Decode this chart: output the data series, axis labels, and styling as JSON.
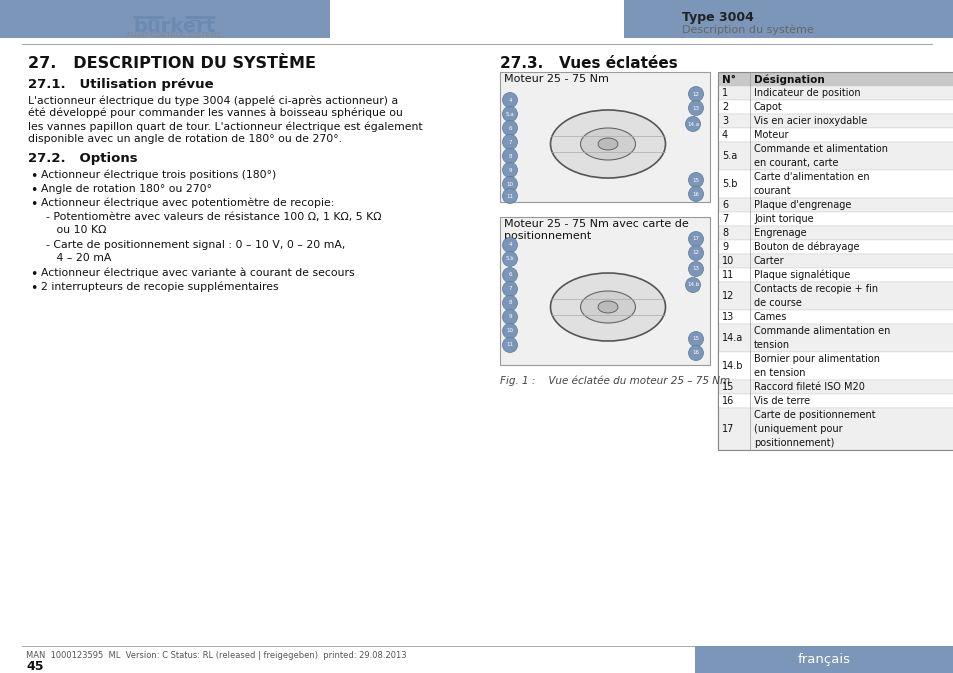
{
  "page_bg": "#ffffff",
  "header_bar_color": "#7b96b8",
  "type_label": "Type 3004",
  "subtitle_label": "Description du système",
  "section_title": "27.   DESCRIPTION DU SYSTÈME",
  "section_27_3": "27.3.   Vues éclatées",
  "subsection_27_1": "27.1.   Utilisation prévue",
  "para_27_1_lines": [
    "L'actionneur électrique du type 3004 (appelé ci-après actionneur) a",
    "été développé pour commander les vannes à boisseau sphérique ou",
    "les vannes papillon quart de tour. L'actionneur électrique est également",
    "disponible avec un angle de rotation de 180° ou de 270°."
  ],
  "subsection_27_2": "27.2.   Options",
  "bullet_items": [
    "Actionneur électrique trois positions (180°)",
    "Angle de rotation 180° ou 270°",
    "Actionneur électrique avec potentiomètre de recopie:"
  ],
  "sub_bullet_1_lines": [
    "- Potentiomètre avec valeurs de résistance 100 Ω, 1 KΩ, 5 KΩ",
    "   ou 10 KΩ"
  ],
  "sub_bullet_2_lines": [
    "- Carte de positionnement signal : 0 – 10 V, 0 – 20 mA,",
    "   4 – 20 mA"
  ],
  "bullet_items_2": [
    "Actionneur électrique avec variante à courant de secours",
    "2 interrupteurs de recopie supplémentaires"
  ],
  "moteur_label_1": "Moteur 25 - 75 Nm",
  "moteur_label_2_lines": [
    "Moteur 25 - 75 Nm avec carte de",
    "positionnement"
  ],
  "fig_caption": "Fig. 1 :    Vue éclatée du moteur 25 – 75 Nm",
  "table_header": [
    "N°",
    "Désignation"
  ],
  "table_groups": [
    [
      "1",
      [
        "Indicateur de position"
      ]
    ],
    [
      "2",
      [
        "Capot"
      ]
    ],
    [
      "3",
      [
        "Vis en acier inoxydable"
      ]
    ],
    [
      "4",
      [
        "Moteur"
      ]
    ],
    [
      "5.a",
      [
        "Commande et alimentation",
        "en courant, carte"
      ]
    ],
    [
      "5.b",
      [
        "Carte d'alimentation en",
        "courant"
      ]
    ],
    [
      "6",
      [
        "Plaque d'engrenage"
      ]
    ],
    [
      "7",
      [
        "Joint torique"
      ]
    ],
    [
      "8",
      [
        "Engrenage"
      ]
    ],
    [
      "9",
      [
        "Bouton de débrayage"
      ]
    ],
    [
      "10",
      [
        "Carter"
      ]
    ],
    [
      "11",
      [
        "Plaque signalétique"
      ]
    ],
    [
      "12",
      [
        "Contacts de recopie + fin",
        "de course"
      ]
    ],
    [
      "13",
      [
        "Cames"
      ]
    ],
    [
      "14.a",
      [
        "Commande alimentation en",
        "tension"
      ]
    ],
    [
      "14.b",
      [
        "Bornier pour alimentation",
        "en tension"
      ]
    ],
    [
      "15",
      [
        "Raccord fileté ISO M20"
      ]
    ],
    [
      "16",
      [
        "Vis de terre"
      ]
    ],
    [
      "17",
      [
        "Carte de positionnement",
        "(uniquement pour",
        "positionnement)"
      ]
    ]
  ],
  "footer_left": "MAN  1000123595  ML  Version: C Status: RL (released | freigegeben)  printed: 29.08.2013",
  "footer_page": "45",
  "footer_right": "français",
  "footer_right_bg": "#7b96b8",
  "table_header_bg": "#c8c8c8",
  "table_alt_bg": "#efefef",
  "text_color": "#1a1a1a",
  "header_blue": "#6b8ab0"
}
